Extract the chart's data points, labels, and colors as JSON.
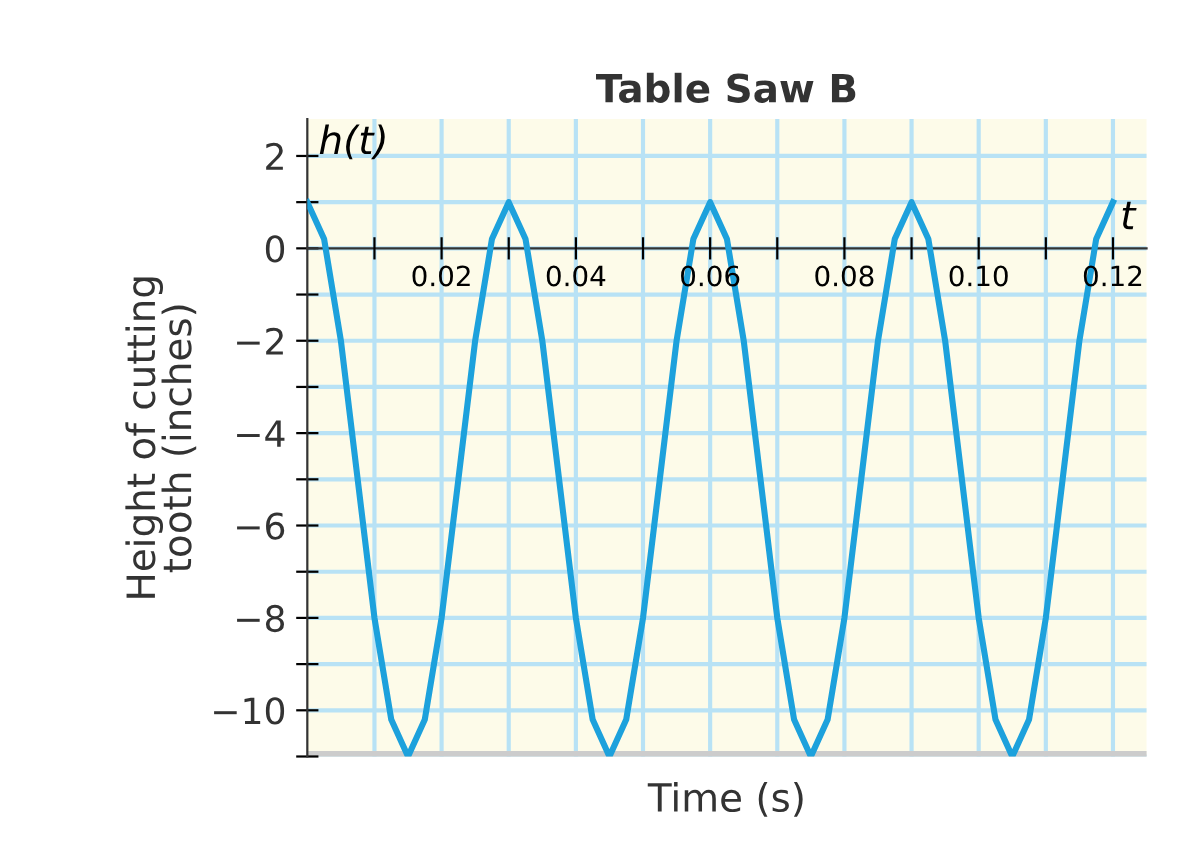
{
  "chart_data": {
    "type": "line",
    "title": "Table Saw B",
    "xlabel": "Time (s)",
    "ylabel": "Height of cutting\ntooth (inches)",
    "annotations": [
      "h(t)",
      "t"
    ],
    "x": [
      0,
      0.0025,
      0.005,
      0.0075,
      0.01,
      0.0125,
      0.015,
      0.0175,
      0.02,
      0.0225,
      0.025,
      0.0275,
      0.03,
      0.0325,
      0.035,
      0.0375,
      0.04,
      0.0425,
      0.045,
      0.0475,
      0.05,
      0.0525,
      0.055,
      0.0575,
      0.06,
      0.0625,
      0.065,
      0.0675,
      0.07,
      0.0725,
      0.075,
      0.0775,
      0.08,
      0.0825,
      0.085,
      0.0875,
      0.09,
      0.0925,
      0.095,
      0.0975,
      0.1,
      0.1025,
      0.105,
      0.1075,
      0.11,
      0.1125,
      0.115,
      0.1175,
      0.12
    ],
    "series": [
      {
        "color": "#1da1dc",
        "values": [
          1,
          0.2,
          -2,
          -5,
          -8,
          -10.2,
          -11,
          -10.2,
          -8,
          -5,
          -2,
          0.2,
          1,
          0.2,
          -2,
          -5,
          -8,
          -10.2,
          -11,
          -10.2,
          -8,
          -5,
          -2,
          0.2,
          1,
          0.2,
          -2,
          -5,
          -8,
          -10.2,
          -11,
          -10.2,
          -8,
          -5,
          -2,
          0.2,
          1,
          0.2,
          -2,
          -5,
          -8,
          -10.2,
          -11,
          -10.2,
          -8,
          -5,
          -2,
          0.2,
          1
        ]
      }
    ],
    "xlim": [
      0,
      0.125
    ],
    "ylim": [
      -11,
      2.8
    ],
    "xticks": [
      {
        "value": 0.01,
        "label": null
      },
      0.02,
      {
        "value": 0.03,
        "label": null
      },
      0.04,
      {
        "value": 0.05,
        "label": null
      },
      0.06,
      {
        "value": 0.07,
        "label": null
      },
      0.08,
      {
        "value": 0.09,
        "label": null
      },
      {
        "value": 0.1,
        "label": "0.10"
      },
      {
        "value": 0.11,
        "label": null
      },
      0.12
    ],
    "yticks": [
      {
        "value": -11,
        "label": null
      },
      {
        "value": -10,
        "label": "−10"
      },
      {
        "value": -9,
        "label": null
      },
      {
        "value": -8,
        "label": "−8"
      },
      {
        "value": -7,
        "label": null
      },
      {
        "value": -6,
        "label": "−6"
      },
      {
        "value": -5,
        "label": null
      },
      {
        "value": -4,
        "label": "−4"
      },
      {
        "value": -3,
        "label": null
      },
      {
        "value": -2,
        "label": "−2"
      },
      {
        "value": -1,
        "label": null
      },
      {
        "value": 0,
        "label": "0"
      },
      {
        "value": 1,
        "label": null
      },
      {
        "value": 2,
        "label": "2"
      }
    ],
    "grid": true,
    "marker": "none",
    "line_style": "solid"
  }
}
